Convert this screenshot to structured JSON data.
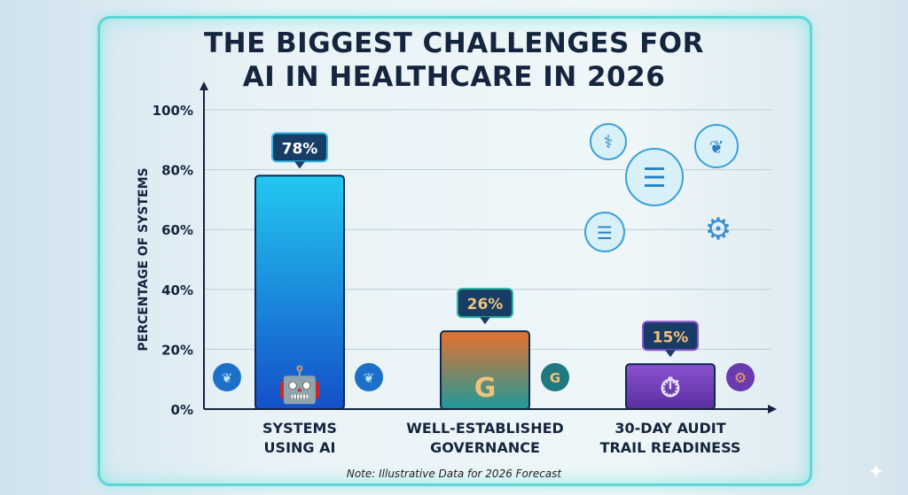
{
  "title_lines": [
    "THE BIGGEST CHALLENGES FOR",
    "AI IN HEALTHCARE IN 2026"
  ],
  "note": "Note: Illustrative Data for 2026 Forecast",
  "chart_data": {
    "type": "bar",
    "title": "THE BIGGEST CHALLENGES FOR AI IN HEALTHCARE IN 2026",
    "ylabel": "PERCENTAGE OF SYSTEMS",
    "xlabel": "",
    "ylim": [
      0,
      100
    ],
    "yticks": [
      "0%",
      "20%",
      "40%",
      "60%",
      "80%",
      "100%"
    ],
    "ytick_values": [
      0,
      20,
      40,
      60,
      80,
      100
    ],
    "grid": true,
    "categories": [
      [
        "SYSTEMS",
        "USING AI"
      ],
      [
        "WELL-ESTABLISHED",
        "GOVERNANCE"
      ],
      [
        "30-DAY AUDIT",
        "TRAIL READINESS"
      ]
    ],
    "values": [
      78,
      26,
      15
    ],
    "data_labels": [
      "78%",
      "26%",
      "15%"
    ],
    "bar_colors": [
      "#1f8fe6",
      "#e0713a",
      "#7a48c0"
    ],
    "label_colors": [
      "#ffffff",
      "#f2c27a",
      "#f2c27a"
    ],
    "bar_icons": [
      "robot-icon",
      "shield-g-icon",
      "stopwatch-icon"
    ]
  }
}
